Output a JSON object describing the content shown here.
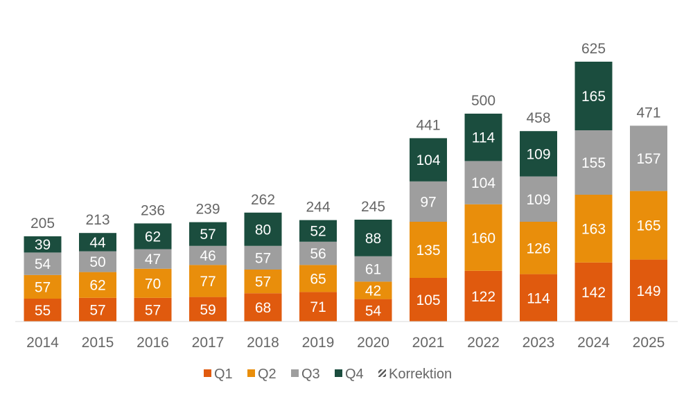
{
  "chart_data": {
    "type": "bar",
    "stacked": true,
    "title": "",
    "xlabel": "",
    "ylabel": "",
    "ylim": [
      0,
      650
    ],
    "grid": false,
    "legend_position": "bottom",
    "categories": [
      "2014",
      "2015",
      "2016",
      "2017",
      "2018",
      "2019",
      "2020",
      "2021",
      "2022",
      "2023",
      "2024",
      "2025"
    ],
    "series": [
      {
        "name": "Q1",
        "color": "#E05A0E",
        "values": [
          55,
          57,
          57,
          59,
          68,
          71,
          54,
          105,
          122,
          114,
          142,
          149
        ]
      },
      {
        "name": "Q2",
        "color": "#E98E0B",
        "values": [
          57,
          62,
          70,
          77,
          57,
          65,
          42,
          135,
          160,
          126,
          163,
          165
        ]
      },
      {
        "name": "Q3",
        "color": "#9E9E9E",
        "values": [
          54,
          50,
          47,
          46,
          57,
          56,
          61,
          97,
          104,
          109,
          155,
          157
        ]
      },
      {
        "name": "Q4",
        "color": "#1B4D3E",
        "values": [
          39,
          44,
          62,
          57,
          80,
          52,
          88,
          104,
          114,
          109,
          165,
          null
        ]
      },
      {
        "name": "Korrektion",
        "color": "#555555",
        "pattern": "hatch",
        "values": [
          null,
          null,
          null,
          null,
          null,
          null,
          null,
          null,
          null,
          null,
          null,
          null
        ]
      }
    ],
    "totals": [
      205,
      213,
      236,
      239,
      262,
      244,
      245,
      441,
      500,
      458,
      625,
      471
    ]
  }
}
